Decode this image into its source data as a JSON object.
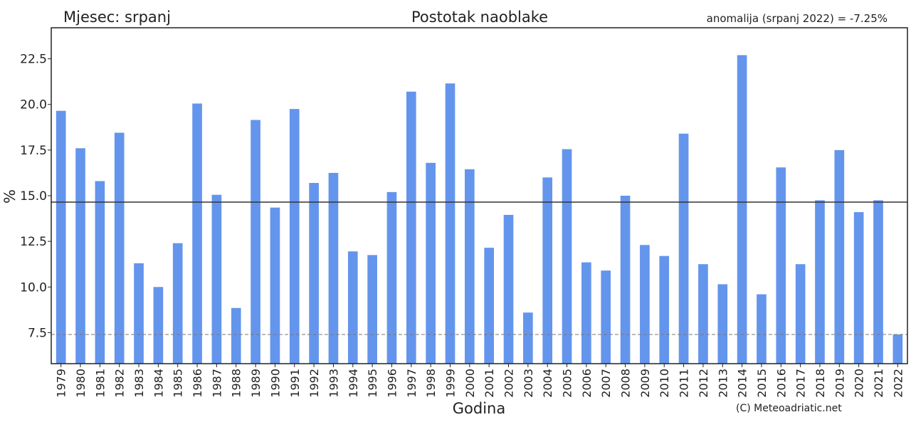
{
  "header": {
    "month_label": "Mjesec: srpanj",
    "title": "Postotak naoblake",
    "anomaly": "anomalija (srpanj 2022) = -7.25%"
  },
  "footer": {
    "credit": "(C) Meteoadriatic.net"
  },
  "colors": {
    "bar": "#6495ed",
    "axis": "#222222",
    "mean_line": "#333333",
    "ref_line": "#777777"
  },
  "chart_data": {
    "type": "bar",
    "title": "Postotak naoblake",
    "xlabel": "Godina",
    "ylabel": "%",
    "ylim": [
      5.8,
      24.2
    ],
    "yticks": [
      7.5,
      10.0,
      12.5,
      15.0,
      17.5,
      20.0,
      22.5
    ],
    "ytick_labels": [
      "7.5",
      "10.0",
      "12.5",
      "15.0",
      "17.5",
      "20.0",
      "22.5"
    ],
    "grid": false,
    "legend": "none",
    "mean_line": 14.65,
    "reference_line": 7.4,
    "categories": [
      "1979",
      "1980",
      "1981",
      "1982",
      "1983",
      "1984",
      "1985",
      "1986",
      "1987",
      "1988",
      "1989",
      "1990",
      "1991",
      "1992",
      "1993",
      "1994",
      "1995",
      "1996",
      "1997",
      "1998",
      "1999",
      "2000",
      "2001",
      "2002",
      "2003",
      "2004",
      "2005",
      "2006",
      "2007",
      "2008",
      "2009",
      "2010",
      "2011",
      "2012",
      "2013",
      "2014",
      "2015",
      "2016",
      "2017",
      "2018",
      "2019",
      "2020",
      "2021",
      "2022"
    ],
    "values": [
      19.65,
      17.6,
      15.8,
      18.45,
      11.3,
      10.0,
      12.4,
      20.05,
      15.05,
      8.85,
      19.15,
      14.35,
      19.75,
      15.7,
      16.25,
      11.95,
      11.75,
      15.2,
      20.7,
      16.8,
      21.15,
      16.45,
      12.15,
      13.95,
      8.6,
      16.0,
      17.55,
      11.35,
      10.9,
      15.0,
      12.3,
      11.7,
      18.4,
      11.25,
      10.15,
      22.7,
      9.6,
      16.55,
      11.25,
      14.75,
      17.5,
      14.1,
      14.75,
      7.4
    ]
  }
}
